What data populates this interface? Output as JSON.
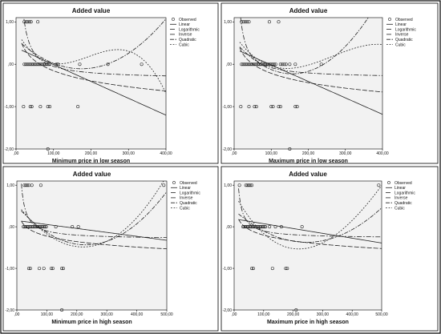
{
  "chart_data": [
    {
      "type": "scatter",
      "title": "Added value",
      "xlabel": "Minimum price in low season",
      "ylabel": "",
      "xlim": [
        0,
        400
      ],
      "ylim": [
        -2,
        1.1
      ],
      "x_ticks": [
        ",00",
        "100,00",
        "200,00",
        "300,00",
        "400,00"
      ],
      "y_ticks": [
        "1,00",
        ",00",
        "-1,00",
        "-2,00"
      ],
      "legend": [
        "Observed",
        "Linear",
        "Logarithmic",
        "Inverse",
        "Quadratic",
        "Cubic"
      ],
      "legend_position": "top-right",
      "observed": [
        {
          "x": 22,
          "y": 1
        },
        {
          "x": 27,
          "y": 1
        },
        {
          "x": 31,
          "y": 1
        },
        {
          "x": 36,
          "y": 1
        },
        {
          "x": 40,
          "y": 1
        },
        {
          "x": 58,
          "y": 1
        },
        {
          "x": 22,
          "y": 0
        },
        {
          "x": 26,
          "y": 0
        },
        {
          "x": 30,
          "y": 0
        },
        {
          "x": 34,
          "y": 0
        },
        {
          "x": 38,
          "y": 0
        },
        {
          "x": 42,
          "y": 0
        },
        {
          "x": 46,
          "y": 0
        },
        {
          "x": 50,
          "y": 0
        },
        {
          "x": 54,
          "y": 0
        },
        {
          "x": 58,
          "y": 0
        },
        {
          "x": 62,
          "y": 0
        },
        {
          "x": 66,
          "y": 0
        },
        {
          "x": 70,
          "y": 0
        },
        {
          "x": 74,
          "y": 0
        },
        {
          "x": 78,
          "y": 0
        },
        {
          "x": 82,
          "y": 0
        },
        {
          "x": 86,
          "y": 0
        },
        {
          "x": 90,
          "y": 0
        },
        {
          "x": 108,
          "y": 0
        },
        {
          "x": 112,
          "y": 0
        },
        {
          "x": 170,
          "y": 0
        },
        {
          "x": 245,
          "y": 0
        },
        {
          "x": 335,
          "y": 0
        },
        {
          "x": 20,
          "y": -1
        },
        {
          "x": 38,
          "y": -1
        },
        {
          "x": 42,
          "y": -1
        },
        {
          "x": 65,
          "y": -1
        },
        {
          "x": 85,
          "y": -1
        },
        {
          "x": 90,
          "y": -1
        },
        {
          "x": 165,
          "y": -1
        },
        {
          "x": 85,
          "y": -2
        }
      ],
      "fits": {
        "Linear": {
          "c": [
            0.39,
            -0.00398
          ]
        },
        "Logarithmic": {
          "log": [
            1.43,
            -0.344
          ]
        },
        "Inverse": {
          "inv": [
            -0.35,
            30
          ]
        },
        "Quadratic": {
          "c": [
            0.6,
            -0.0081,
            2.32e-05
          ]
        },
        "Cubic": {
          "c": [
            0.8,
            -0.01604,
            9.96e-05,
            -1.72e-07
          ]
        }
      }
    },
    {
      "type": "scatter",
      "title": "Added value",
      "xlabel": "Maximum price in low season",
      "ylabel": "",
      "xlim": [
        0,
        400
      ],
      "ylim": [
        -2,
        1.1
      ],
      "x_ticks": [
        ",00",
        "100,00",
        "200,00",
        "300,00",
        "400,00"
      ],
      "y_ticks": [
        "1,00",
        ",00",
        "-1,00",
        "-2,00"
      ],
      "legend": [
        "Observed",
        "Linear",
        "Logarithmic",
        "Inverse",
        "Quadratic",
        "Cubic"
      ],
      "legend_position": "top-right",
      "observed": [
        {
          "x": 20,
          "y": 1
        },
        {
          "x": 25,
          "y": 1
        },
        {
          "x": 30,
          "y": 1
        },
        {
          "x": 35,
          "y": 1
        },
        {
          "x": 40,
          "y": 1
        },
        {
          "x": 95,
          "y": 1
        },
        {
          "x": 120,
          "y": 1
        },
        {
          "x": 20,
          "y": 0
        },
        {
          "x": 24,
          "y": 0
        },
        {
          "x": 28,
          "y": 0
        },
        {
          "x": 32,
          "y": 0
        },
        {
          "x": 36,
          "y": 0
        },
        {
          "x": 40,
          "y": 0
        },
        {
          "x": 44,
          "y": 0
        },
        {
          "x": 48,
          "y": 0
        },
        {
          "x": 52,
          "y": 0
        },
        {
          "x": 56,
          "y": 0
        },
        {
          "x": 60,
          "y": 0
        },
        {
          "x": 64,
          "y": 0
        },
        {
          "x": 68,
          "y": 0
        },
        {
          "x": 72,
          "y": 0
        },
        {
          "x": 76,
          "y": 0
        },
        {
          "x": 80,
          "y": 0
        },
        {
          "x": 84,
          "y": 0
        },
        {
          "x": 88,
          "y": 0
        },
        {
          "x": 92,
          "y": 0
        },
        {
          "x": 96,
          "y": 0
        },
        {
          "x": 100,
          "y": 0
        },
        {
          "x": 104,
          "y": 0
        },
        {
          "x": 108,
          "y": 0
        },
        {
          "x": 112,
          "y": 0
        },
        {
          "x": 125,
          "y": 0
        },
        {
          "x": 130,
          "y": 0
        },
        {
          "x": 135,
          "y": 0
        },
        {
          "x": 140,
          "y": 0
        },
        {
          "x": 150,
          "y": 0
        },
        {
          "x": 165,
          "y": 0
        },
        {
          "x": 235,
          "y": 0
        },
        {
          "x": 18,
          "y": -1
        },
        {
          "x": 40,
          "y": -1
        },
        {
          "x": 55,
          "y": -1
        },
        {
          "x": 60,
          "y": -1
        },
        {
          "x": 100,
          "y": -1
        },
        {
          "x": 105,
          "y": -1
        },
        {
          "x": 120,
          "y": -1
        },
        {
          "x": 125,
          "y": -1
        },
        {
          "x": 165,
          "y": -1
        },
        {
          "x": 170,
          "y": -1
        },
        {
          "x": 150,
          "y": -2
        }
      ],
      "fits": {
        "Linear": {
          "c": [
            0.37,
            -0.00388
          ]
        },
        "Logarithmic": {
          "log": [
            1.25,
            -0.318
          ]
        },
        "Inverse": {
          "inv": [
            -0.33,
            25
          ]
        },
        "Quadratic": {
          "c": [
            0.55,
            -0.00991,
            3.16e-05
          ]
        },
        "Cubic": {
          "c": [
            0.7,
            -0.0128,
            6.15e-05,
            -7.74e-08
          ]
        }
      }
    },
    {
      "type": "scatter",
      "title": "Added value",
      "xlabel": "Minimum price in high season",
      "ylabel": "",
      "xlim": [
        0,
        500
      ],
      "ylim": [
        -2,
        1.1
      ],
      "x_ticks": [
        ",00",
        "100,00",
        "200,00",
        "300,00",
        "400,00",
        "500,00"
      ],
      "y_ticks": [
        "1,00",
        ",00",
        "-1,00",
        "-2,00"
      ],
      "legend": [
        "Observed",
        "Linear",
        "Logarithmic",
        "Inverse",
        "Quadratic",
        "Cubic"
      ],
      "legend_position": "top-right",
      "observed": [
        {
          "x": 25,
          "y": 1
        },
        {
          "x": 30,
          "y": 1
        },
        {
          "x": 35,
          "y": 1
        },
        {
          "x": 40,
          "y": 1
        },
        {
          "x": 50,
          "y": 1
        },
        {
          "x": 80,
          "y": 1
        },
        {
          "x": 490,
          "y": 1
        },
        {
          "x": 22,
          "y": 0
        },
        {
          "x": 26,
          "y": 0
        },
        {
          "x": 30,
          "y": 0
        },
        {
          "x": 34,
          "y": 0
        },
        {
          "x": 38,
          "y": 0
        },
        {
          "x": 42,
          "y": 0
        },
        {
          "x": 46,
          "y": 0
        },
        {
          "x": 50,
          "y": 0
        },
        {
          "x": 54,
          "y": 0
        },
        {
          "x": 58,
          "y": 0
        },
        {
          "x": 62,
          "y": 0
        },
        {
          "x": 66,
          "y": 0
        },
        {
          "x": 70,
          "y": 0
        },
        {
          "x": 74,
          "y": 0
        },
        {
          "x": 78,
          "y": 0
        },
        {
          "x": 82,
          "y": 0
        },
        {
          "x": 86,
          "y": 0
        },
        {
          "x": 90,
          "y": 0
        },
        {
          "x": 94,
          "y": 0
        },
        {
          "x": 98,
          "y": 0
        },
        {
          "x": 130,
          "y": 0
        },
        {
          "x": 185,
          "y": 0
        },
        {
          "x": 205,
          "y": 0
        },
        {
          "x": 40,
          "y": -1
        },
        {
          "x": 45,
          "y": -1
        },
        {
          "x": 75,
          "y": -1
        },
        {
          "x": 90,
          "y": -1
        },
        {
          "x": 115,
          "y": -1
        },
        {
          "x": 120,
          "y": -1
        },
        {
          "x": 150,
          "y": -1
        },
        {
          "x": 155,
          "y": -1
        },
        {
          "x": 150,
          "y": -2
        }
      ],
      "fits": {
        "Linear": {
          "c": [
            0.15,
            -0.00095
          ]
        },
        "Logarithmic": {
          "log": [
            0.65,
            -0.19
          ]
        },
        "Inverse": {
          "inv": [
            -0.3,
            20
          ]
        },
        "Quadratic": {
          "c": [
            0.5,
            -0.00811,
            1.76e-05
          ]
        },
        "Cubic": {
          "c": [
            0.55,
            -0.00931,
            2.06e-05,
            1.5e-09
          ]
        }
      }
    },
    {
      "type": "scatter",
      "title": "Added value",
      "xlabel": "Maximum price in high season",
      "ylabel": "",
      "xlim": [
        0,
        500
      ],
      "ylim": [
        -2,
        1.1
      ],
      "x_ticks": [
        ",00",
        "100,00",
        "200,00",
        "300,00",
        "400,00",
        "500,00"
      ],
      "y_ticks": [
        "1,00",
        ",00",
        "-1,00",
        "-2,00"
      ],
      "legend": [
        "Observed",
        "Linear",
        "Logarithmic",
        "Inverse",
        "Quadratic",
        "Cubic"
      ],
      "legend_position": "top-right",
      "observed": [
        {
          "x": 18,
          "y": 1
        },
        {
          "x": 40,
          "y": 1
        },
        {
          "x": 45,
          "y": 1
        },
        {
          "x": 50,
          "y": 1
        },
        {
          "x": 55,
          "y": 1
        },
        {
          "x": 60,
          "y": 1
        },
        {
          "x": 490,
          "y": 1
        },
        {
          "x": 30,
          "y": 0
        },
        {
          "x": 34,
          "y": 0
        },
        {
          "x": 38,
          "y": 0
        },
        {
          "x": 42,
          "y": 0
        },
        {
          "x": 46,
          "y": 0
        },
        {
          "x": 50,
          "y": 0
        },
        {
          "x": 54,
          "y": 0
        },
        {
          "x": 58,
          "y": 0
        },
        {
          "x": 62,
          "y": 0
        },
        {
          "x": 66,
          "y": 0
        },
        {
          "x": 70,
          "y": 0
        },
        {
          "x": 74,
          "y": 0
        },
        {
          "x": 78,
          "y": 0
        },
        {
          "x": 82,
          "y": 0
        },
        {
          "x": 86,
          "y": 0
        },
        {
          "x": 90,
          "y": 0
        },
        {
          "x": 94,
          "y": 0
        },
        {
          "x": 98,
          "y": 0
        },
        {
          "x": 102,
          "y": 0
        },
        {
          "x": 106,
          "y": 0
        },
        {
          "x": 120,
          "y": 0
        },
        {
          "x": 140,
          "y": 0
        },
        {
          "x": 160,
          "y": 0
        },
        {
          "x": 230,
          "y": 0
        },
        {
          "x": 60,
          "y": -1
        },
        {
          "x": 65,
          "y": -1
        },
        {
          "x": 130,
          "y": -1
        },
        {
          "x": 175,
          "y": -1
        },
        {
          "x": 180,
          "y": -1
        },
        {
          "x": 210,
          "y": -2
        }
      ],
      "fits": {
        "Linear": {
          "c": [
            0.19,
            -0.00116
          ]
        },
        "Logarithmic": {
          "log": [
            0.72,
            -0.2
          ]
        },
        "Inverse": {
          "inv": [
            -0.28,
            18
          ]
        },
        "Quadratic": {
          "c": [
            0.4,
            -0.00629,
            1.28e-05
          ]
        },
        "Cubic": {
          "c": [
            0.8,
            -0.01294,
            3.49e-05,
            -1.65e-08
          ]
        }
      }
    }
  ]
}
